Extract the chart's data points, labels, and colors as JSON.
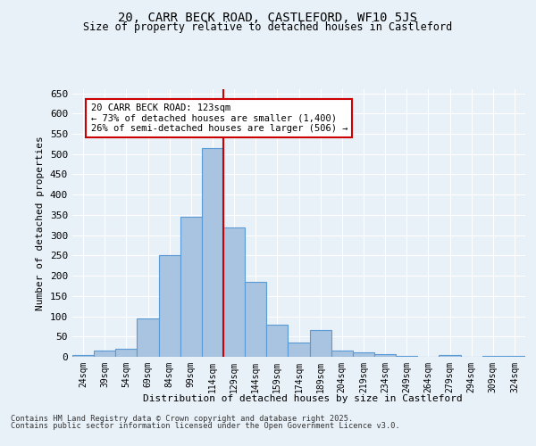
{
  "title_line1": "20, CARR BECK ROAD, CASTLEFORD, WF10 5JS",
  "title_line2": "Size of property relative to detached houses in Castleford",
  "xlabel": "Distribution of detached houses by size in Castleford",
  "ylabel": "Number of detached properties",
  "bin_labels": [
    "24sqm",
    "39sqm",
    "54sqm",
    "69sqm",
    "84sqm",
    "99sqm",
    "114sqm",
    "129sqm",
    "144sqm",
    "159sqm",
    "174sqm",
    "189sqm",
    "204sqm",
    "219sqm",
    "234sqm",
    "249sqm",
    "264sqm",
    "279sqm",
    "294sqm",
    "309sqm",
    "324sqm"
  ],
  "bar_values": [
    5,
    15,
    20,
    95,
    250,
    345,
    515,
    320,
    185,
    80,
    35,
    65,
    15,
    12,
    7,
    3,
    0,
    5,
    0,
    3,
    2
  ],
  "bar_color": "#a8c4e0",
  "bar_edge_color": "#5b9bd5",
  "vline_x": 6.5,
  "vline_color": "#cc0000",
  "annotation_line1": "20 CARR BECK ROAD: 123sqm",
  "annotation_line2": "← 73% of detached houses are smaller (1,400)",
  "annotation_line3": "26% of semi-detached houses are larger (506) →",
  "annotation_box_color": "#ffffff",
  "annotation_box_edge_color": "#cc0000",
  "ylim": [
    0,
    660
  ],
  "yticks": [
    0,
    50,
    100,
    150,
    200,
    250,
    300,
    350,
    400,
    450,
    500,
    550,
    600,
    650
  ],
  "bg_color": "#e8f0f8",
  "plot_bg_color": "#e8f0f8",
  "footer_line1": "Contains HM Land Registry data © Crown copyright and database right 2025.",
  "footer_line2": "Contains public sector information licensed under the Open Government Licence v3.0."
}
